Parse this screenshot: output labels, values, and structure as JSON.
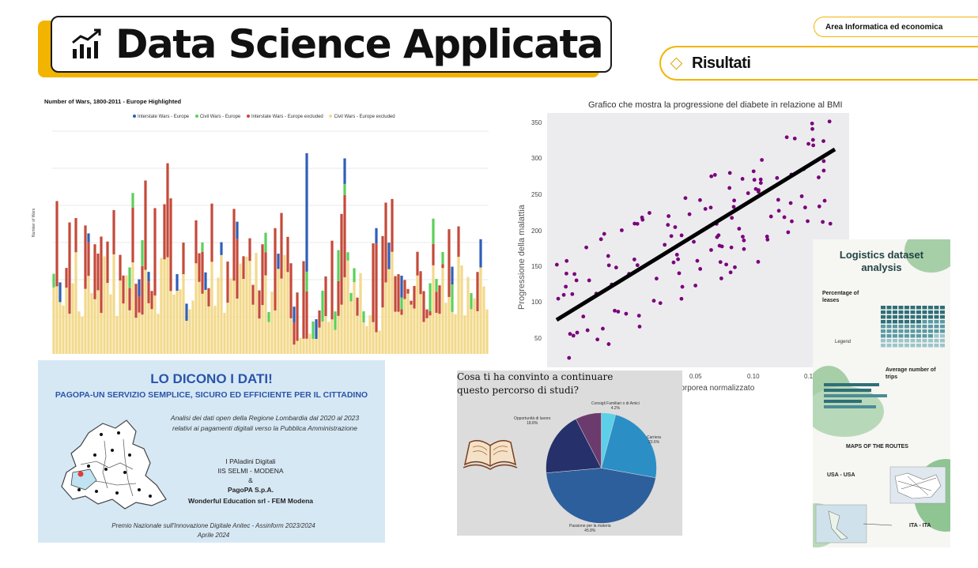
{
  "header": {
    "title": "Data Science Applicata",
    "title_icon": "chart-trend-icon",
    "area_label": "Area Informatica ed economica",
    "section_label": "Risultati"
  },
  "colors": {
    "accent": "#f3b400",
    "purple_points": "#7a007a",
    "pago_blue": "#2a55a8"
  },
  "wars_chart": {
    "title": "Number of Wars, 1800-2011 - Europe Highlighted",
    "legend": [
      "Interstate Wars - Europe",
      "Civil Wars - Europe",
      "Interstate Wars - Europe excluded",
      "Civil Wars - Europe excluded"
    ],
    "ylabel": "Number of Wars"
  },
  "scatter_chart": {
    "title": "Grafico che mostra la progressione del diabete in relazione al BMI",
    "ylabel": "Progressione della malattia",
    "xlabel": "sa corporea normalizzato",
    "yticks": [
      "350",
      "300",
      "250",
      "200",
      "150",
      "100",
      "50"
    ],
    "xticks": [
      "0.05",
      "0.10",
      "0.1"
    ]
  },
  "pagopa": {
    "heading": "LO DICONO I DATI!",
    "subheading": "PAGOPA-UN SERVIZIO SEMPLICE, SICURO ED EFFICIENTE PER IL CITTADINO",
    "analysis_line1": "Analisi dei dati open della Regione Lombardia dal 2020 al 2023",
    "analysis_line2": "relativi ai pagamenti digitali verso la Pubblica Amministrazione",
    "credit_team": "I PAladini Digitali",
    "credit_school": "IIS SELMI - MODENA",
    "credit_amp": "&",
    "credit_pagopa": "PagoPA S.p.A.",
    "credit_wonderful": "Wonderful Education srl - FEM Modena",
    "prize": "Premio Nazionale sull'Innovazione Digitale Anitec - Assinform 2023/2024",
    "date": "Aprile 2024"
  },
  "pie_chart": {
    "question_line1": "Cosa ti ha convinto a continuare",
    "question_line2": "questo percorso di studi?",
    "labels": [
      {
        "name": "Consigli Familiari o di Amici",
        "pct": "4.2%"
      },
      {
        "name": "Carriera",
        "pct": "23.6%"
      },
      {
        "name": "Passione per la materia",
        "pct": "45.8%"
      },
      {
        "name": "Opportunità di lavoro",
        "pct": "18.8%"
      }
    ]
  },
  "logistics": {
    "title_line1": "Logistics dataset",
    "title_line2": "analysis",
    "pct_leases_line1": "Percentage of",
    "pct_leases_line2": "leases",
    "avg_trips_line1": "Average number of",
    "avg_trips_line2": "trips",
    "maps_title": "MAPS OF THE ROUTES",
    "route_usa": "USA - USA",
    "route_ita": "ITA - ITA",
    "legend_label": "Legend"
  },
  "chart_data": [
    {
      "type": "scatter",
      "title": "Grafico che mostra la progressione del diabete in relazione al BMI",
      "ylabel": "Progressione della malattia",
      "ylim": [
        25,
        360
      ],
      "yticks": [
        50,
        100,
        150,
        200,
        250,
        300,
        350
      ]
    },
    {
      "type": "pie",
      "title": "Cosa ti ha convinto a continuare questo percorso di studi?",
      "slices": [
        {
          "label": "Consigli Familiari o di Amici",
          "value": 4.2
        },
        {
          "label": "Carriera",
          "value": 23.6
        },
        {
          "label": "Passione per la materia",
          "value": 45.8
        },
        {
          "label": "Opportunità di lavoro",
          "value": 18.8
        }
      ]
    }
  ]
}
